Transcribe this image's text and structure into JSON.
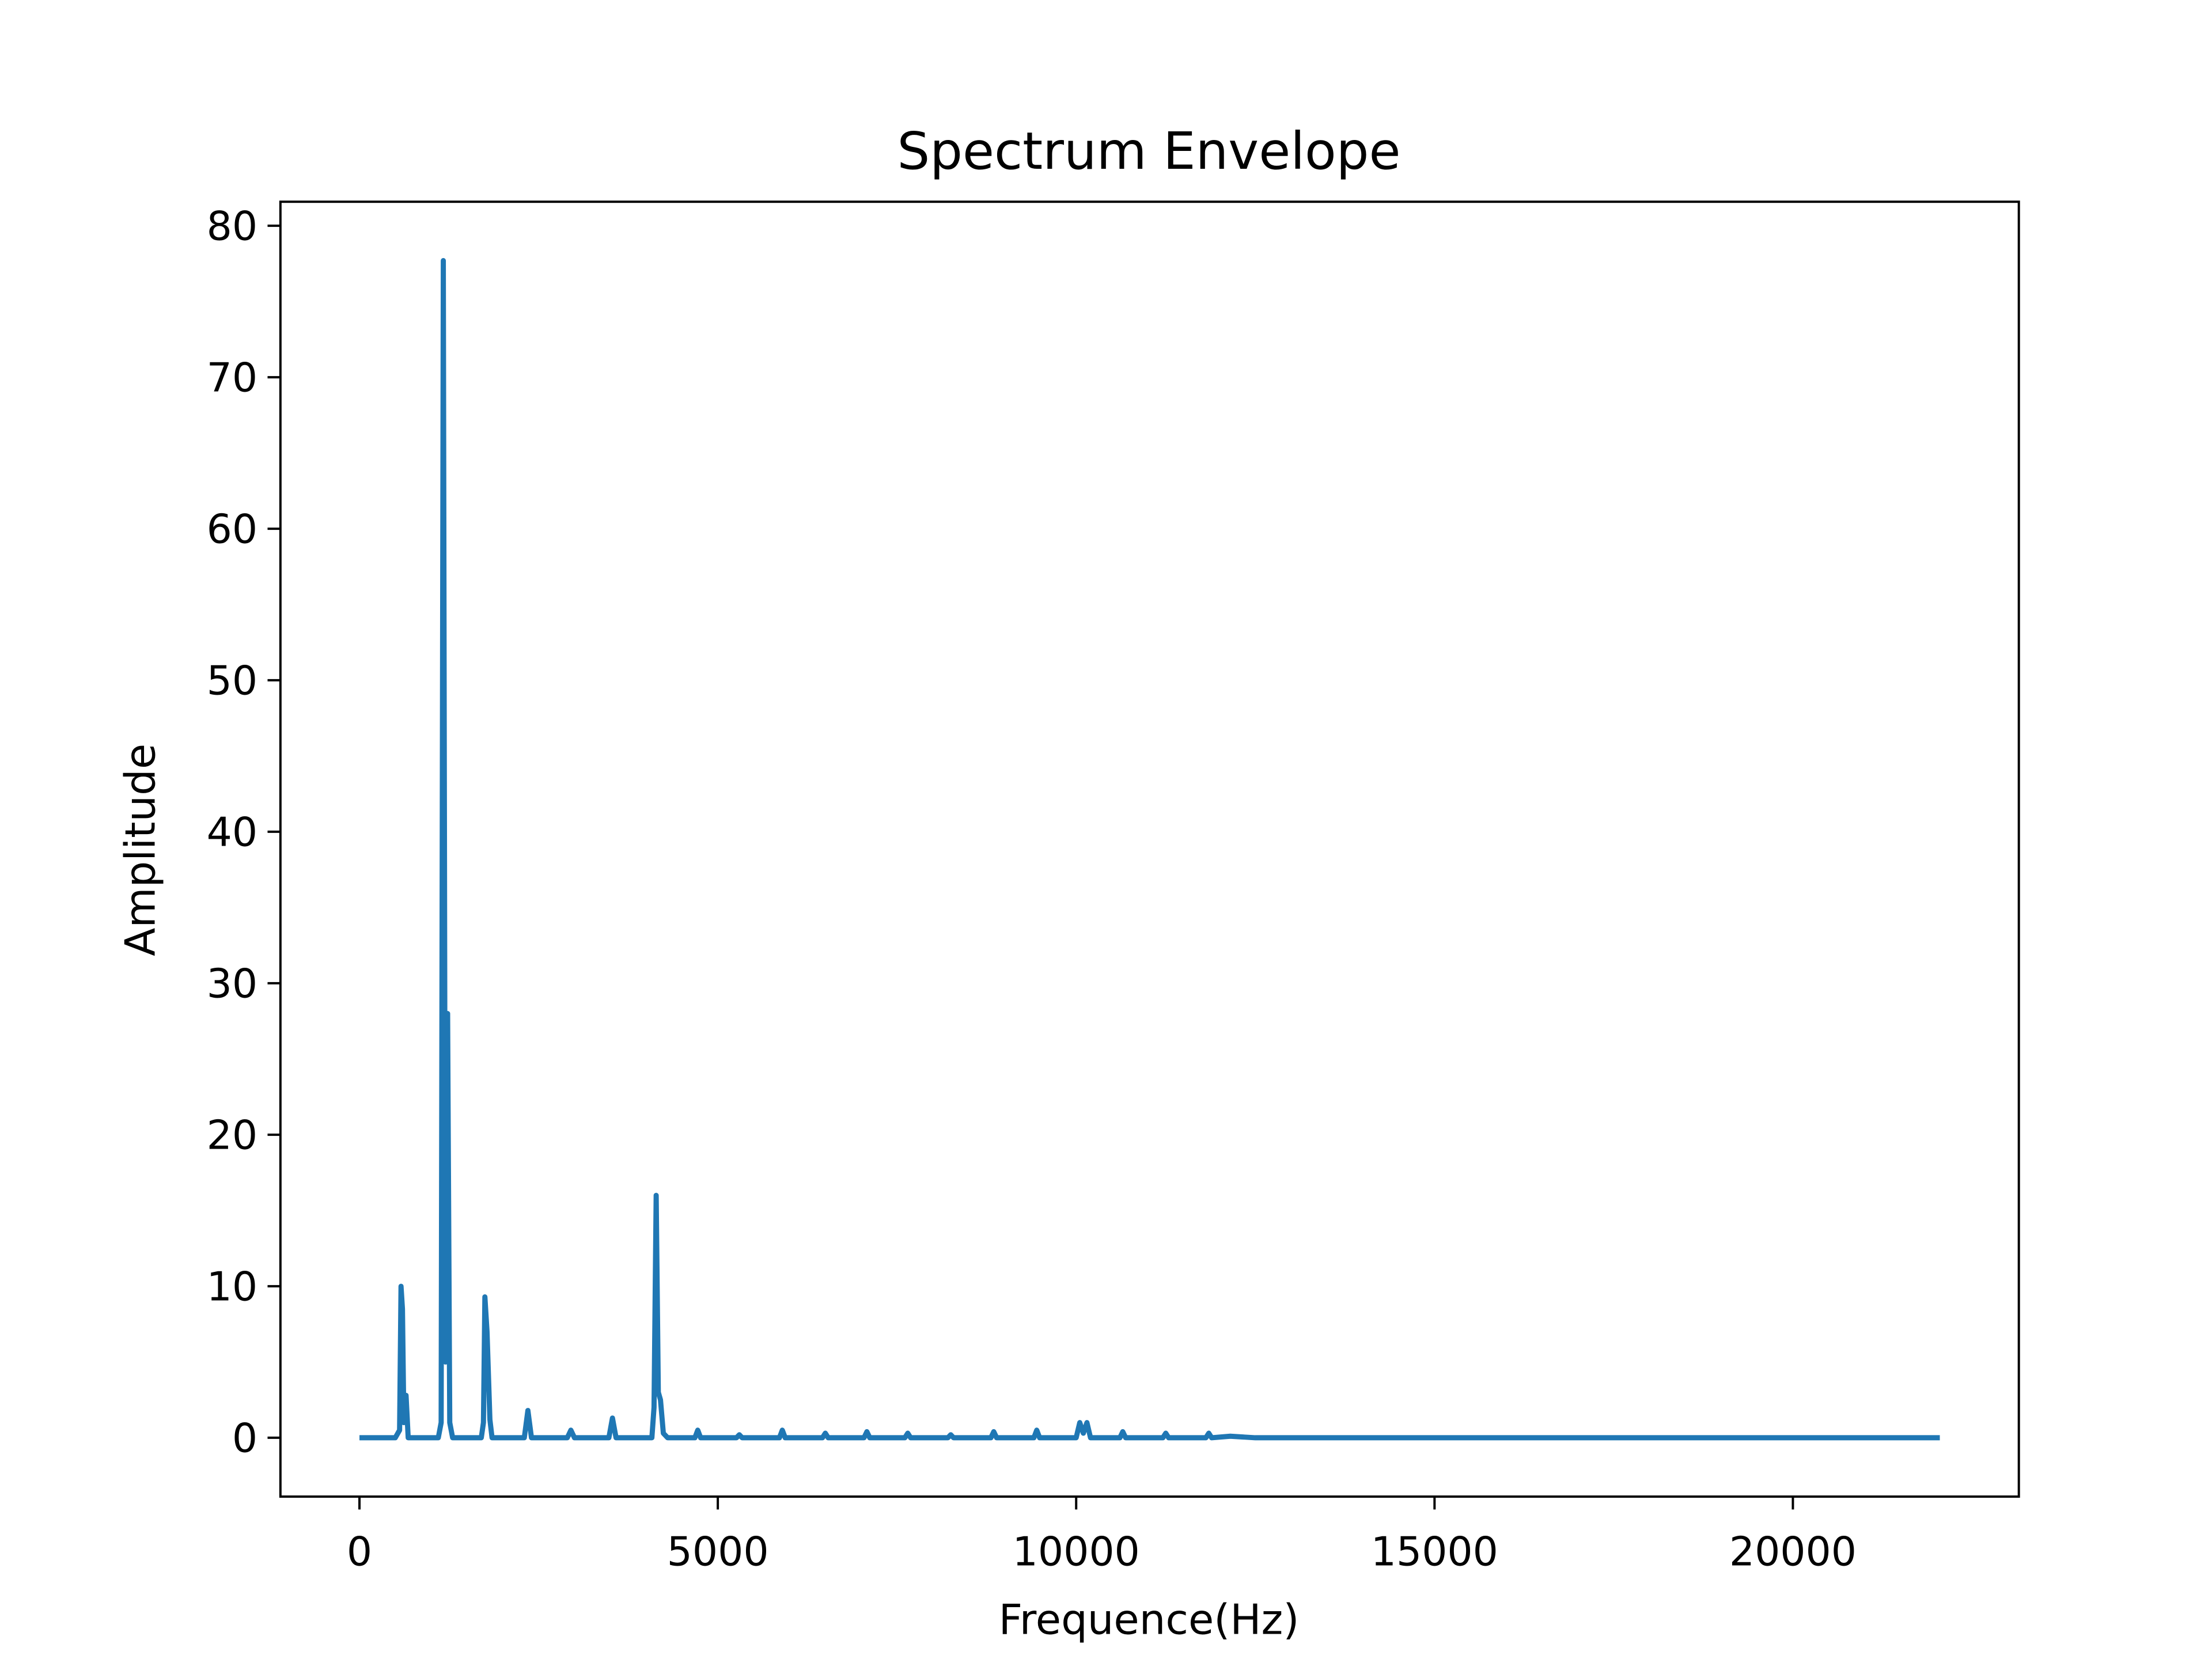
{
  "chart_data": {
    "type": "line",
    "title": "Spectrum Envelope",
    "xlabel": "Frequence(Hz)",
    "ylabel": "Amplitude",
    "xlim": [
      -1102.5,
      23152.5
    ],
    "ylim": [
      -3.885,
      81.585
    ],
    "xticks": [
      0,
      5000,
      10000,
      15000,
      20000
    ],
    "yticks": [
      0,
      10,
      20,
      30,
      40,
      50,
      60,
      70,
      80
    ],
    "series": [
      {
        "color": "#1f77b4",
        "x": [
          0,
          500,
          560,
          580,
          600,
          620,
          650,
          680,
          1100,
          1140,
          1170,
          1200,
          1230,
          1260,
          1300,
          1700,
          1730,
          1750,
          1780,
          1820,
          1850,
          2300,
          2350,
          2400,
          2900,
          2950,
          3000,
          3480,
          3530,
          3580,
          4080,
          4110,
          4140,
          4170,
          4200,
          4240,
          4300,
          4680,
          4720,
          4760,
          5260,
          5300,
          5340,
          5860,
          5900,
          5940,
          6460,
          6500,
          6540,
          7040,
          7080,
          7120,
          7610,
          7650,
          7690,
          8210,
          8250,
          8290,
          8810,
          8850,
          8890,
          9410,
          9450,
          9490,
          10000,
          10050,
          10100,
          10150,
          10200,
          10610,
          10650,
          10690,
          11210,
          11250,
          11290,
          11810,
          11850,
          11890,
          12150,
          12500,
          22050
        ],
        "values": [
          0,
          0,
          0.5,
          10,
          8.5,
          1,
          2.8,
          0,
          0,
          1,
          77.7,
          5,
          28,
          1,
          0,
          0,
          1,
          9.3,
          7,
          1.2,
          0,
          0,
          1.8,
          0,
          0,
          0.5,
          0,
          0,
          1.3,
          0,
          0,
          2,
          16,
          3,
          2.5,
          0.3,
          0,
          0,
          0.5,
          0,
          0,
          0.2,
          0,
          0,
          0.5,
          0,
          0,
          0.3,
          0,
          0,
          0.4,
          0,
          0,
          0.3,
          0,
          0,
          0.2,
          0,
          0,
          0.4,
          0,
          0,
          0.5,
          0,
          0,
          1,
          0.3,
          1,
          0,
          0,
          0.4,
          0,
          0,
          0.3,
          0,
          0,
          0.3,
          0,
          0.1,
          0,
          0
        ]
      }
    ]
  }
}
